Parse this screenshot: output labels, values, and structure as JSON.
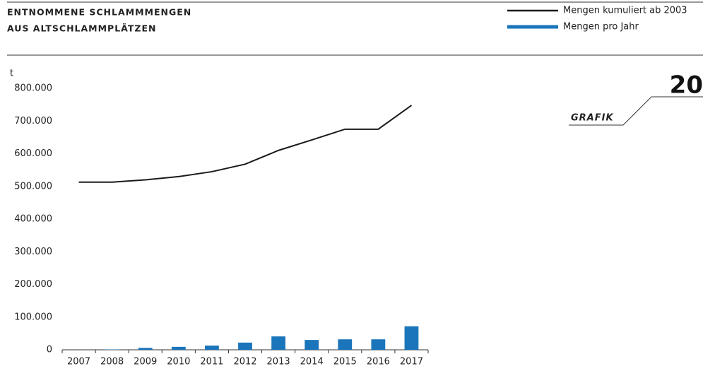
{
  "chart_data": {
    "type": "bar",
    "title": [
      "ENTNOMMENE SCHLAMMMENGEN",
      "AUS ALTSCHLAMMPLÄTZEN"
    ],
    "y_label": "t",
    "annotations": [
      "20",
      "GRAFIK"
    ],
    "categories": [
      "2007",
      "2008",
      "2009",
      "2010",
      "2011",
      "2012",
      "2013",
      "2014",
      "2015",
      "2016",
      "2017"
    ],
    "series": [
      {
        "name": "Mengen kumuliert ab 2003",
        "type": "line",
        "color": "#1a1a1a",
        "values": [
          513000,
          513000,
          520000,
          530000,
          545000,
          568000,
          610000,
          642000,
          675000,
          675000,
          748000
        ]
      },
      {
        "name": "Mengen pro Jahr",
        "type": "bar",
        "color": "#1a75bb",
        "values": [
          0,
          1000,
          6000,
          9000,
          13000,
          22000,
          41000,
          30000,
          32000,
          32000,
          72000
        ]
      }
    ],
    "ylim": [
      0,
      800000
    ],
    "yticks": [
      0,
      {
        "value": 100000,
        "label": "100.000"
      },
      {
        "value": 200000,
        "label": "200.000"
      },
      {
        "value": 300000,
        "label": "300.000"
      },
      {
        "value": 400000,
        "label": "400.000"
      },
      {
        "value": 500000,
        "label": "500.000"
      },
      {
        "value": 600000,
        "label": "600.000"
      },
      {
        "value": 700000,
        "label": "700.000"
      },
      {
        "value": 800000,
        "label": "800.000"
      }
    ],
    "grid": false
  }
}
